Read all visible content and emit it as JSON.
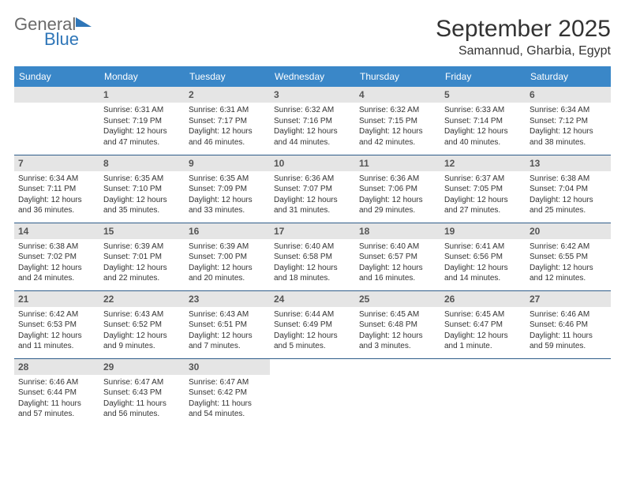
{
  "logo": {
    "word1": "General",
    "word2": "Blue"
  },
  "title": "September 2025",
  "location": "Samannud, Gharbia, Egypt",
  "colors": {
    "header_bg": "#3a87c8",
    "header_text": "#ffffff",
    "daynum_bg": "#e5e5e5",
    "daynum_text": "#555555",
    "cell_border": "#2f5d8a",
    "logo_gray": "#6a6a6a",
    "logo_blue": "#2f76b8",
    "page_bg": "#ffffff",
    "text": "#333333"
  },
  "typography": {
    "title_fontsize": 30,
    "location_fontsize": 16,
    "header_fontsize": 12,
    "daynum_fontsize": 12,
    "body_fontsize": 10
  },
  "weekdays": [
    "Sunday",
    "Monday",
    "Tuesday",
    "Wednesday",
    "Thursday",
    "Friday",
    "Saturday"
  ],
  "weeks": [
    [
      null,
      {
        "n": "1",
        "sunrise": "6:31 AM",
        "sunset": "7:19 PM",
        "daylight": "12 hours and 47 minutes."
      },
      {
        "n": "2",
        "sunrise": "6:31 AM",
        "sunset": "7:17 PM",
        "daylight": "12 hours and 46 minutes."
      },
      {
        "n": "3",
        "sunrise": "6:32 AM",
        "sunset": "7:16 PM",
        "daylight": "12 hours and 44 minutes."
      },
      {
        "n": "4",
        "sunrise": "6:32 AM",
        "sunset": "7:15 PM",
        "daylight": "12 hours and 42 minutes."
      },
      {
        "n": "5",
        "sunrise": "6:33 AM",
        "sunset": "7:14 PM",
        "daylight": "12 hours and 40 minutes."
      },
      {
        "n": "6",
        "sunrise": "6:34 AM",
        "sunset": "7:12 PM",
        "daylight": "12 hours and 38 minutes."
      }
    ],
    [
      {
        "n": "7",
        "sunrise": "6:34 AM",
        "sunset": "7:11 PM",
        "daylight": "12 hours and 36 minutes."
      },
      {
        "n": "8",
        "sunrise": "6:35 AM",
        "sunset": "7:10 PM",
        "daylight": "12 hours and 35 minutes."
      },
      {
        "n": "9",
        "sunrise": "6:35 AM",
        "sunset": "7:09 PM",
        "daylight": "12 hours and 33 minutes."
      },
      {
        "n": "10",
        "sunrise": "6:36 AM",
        "sunset": "7:07 PM",
        "daylight": "12 hours and 31 minutes."
      },
      {
        "n": "11",
        "sunrise": "6:36 AM",
        "sunset": "7:06 PM",
        "daylight": "12 hours and 29 minutes."
      },
      {
        "n": "12",
        "sunrise": "6:37 AM",
        "sunset": "7:05 PM",
        "daylight": "12 hours and 27 minutes."
      },
      {
        "n": "13",
        "sunrise": "6:38 AM",
        "sunset": "7:04 PM",
        "daylight": "12 hours and 25 minutes."
      }
    ],
    [
      {
        "n": "14",
        "sunrise": "6:38 AM",
        "sunset": "7:02 PM",
        "daylight": "12 hours and 24 minutes."
      },
      {
        "n": "15",
        "sunrise": "6:39 AM",
        "sunset": "7:01 PM",
        "daylight": "12 hours and 22 minutes."
      },
      {
        "n": "16",
        "sunrise": "6:39 AM",
        "sunset": "7:00 PM",
        "daylight": "12 hours and 20 minutes."
      },
      {
        "n": "17",
        "sunrise": "6:40 AM",
        "sunset": "6:58 PM",
        "daylight": "12 hours and 18 minutes."
      },
      {
        "n": "18",
        "sunrise": "6:40 AM",
        "sunset": "6:57 PM",
        "daylight": "12 hours and 16 minutes."
      },
      {
        "n": "19",
        "sunrise": "6:41 AM",
        "sunset": "6:56 PM",
        "daylight": "12 hours and 14 minutes."
      },
      {
        "n": "20",
        "sunrise": "6:42 AM",
        "sunset": "6:55 PM",
        "daylight": "12 hours and 12 minutes."
      }
    ],
    [
      {
        "n": "21",
        "sunrise": "6:42 AM",
        "sunset": "6:53 PM",
        "daylight": "12 hours and 11 minutes."
      },
      {
        "n": "22",
        "sunrise": "6:43 AM",
        "sunset": "6:52 PM",
        "daylight": "12 hours and 9 minutes."
      },
      {
        "n": "23",
        "sunrise": "6:43 AM",
        "sunset": "6:51 PM",
        "daylight": "12 hours and 7 minutes."
      },
      {
        "n": "24",
        "sunrise": "6:44 AM",
        "sunset": "6:49 PM",
        "daylight": "12 hours and 5 minutes."
      },
      {
        "n": "25",
        "sunrise": "6:45 AM",
        "sunset": "6:48 PM",
        "daylight": "12 hours and 3 minutes."
      },
      {
        "n": "26",
        "sunrise": "6:45 AM",
        "sunset": "6:47 PM",
        "daylight": "12 hours and 1 minute."
      },
      {
        "n": "27",
        "sunrise": "6:46 AM",
        "sunset": "6:46 PM",
        "daylight": "11 hours and 59 minutes."
      }
    ],
    [
      {
        "n": "28",
        "sunrise": "6:46 AM",
        "sunset": "6:44 PM",
        "daylight": "11 hours and 57 minutes."
      },
      {
        "n": "29",
        "sunrise": "6:47 AM",
        "sunset": "6:43 PM",
        "daylight": "11 hours and 56 minutes."
      },
      {
        "n": "30",
        "sunrise": "6:47 AM",
        "sunset": "6:42 PM",
        "daylight": "11 hours and 54 minutes."
      },
      null,
      null,
      null,
      null
    ]
  ],
  "labels": {
    "sunrise": "Sunrise:",
    "sunset": "Sunset:",
    "daylight": "Daylight:"
  }
}
